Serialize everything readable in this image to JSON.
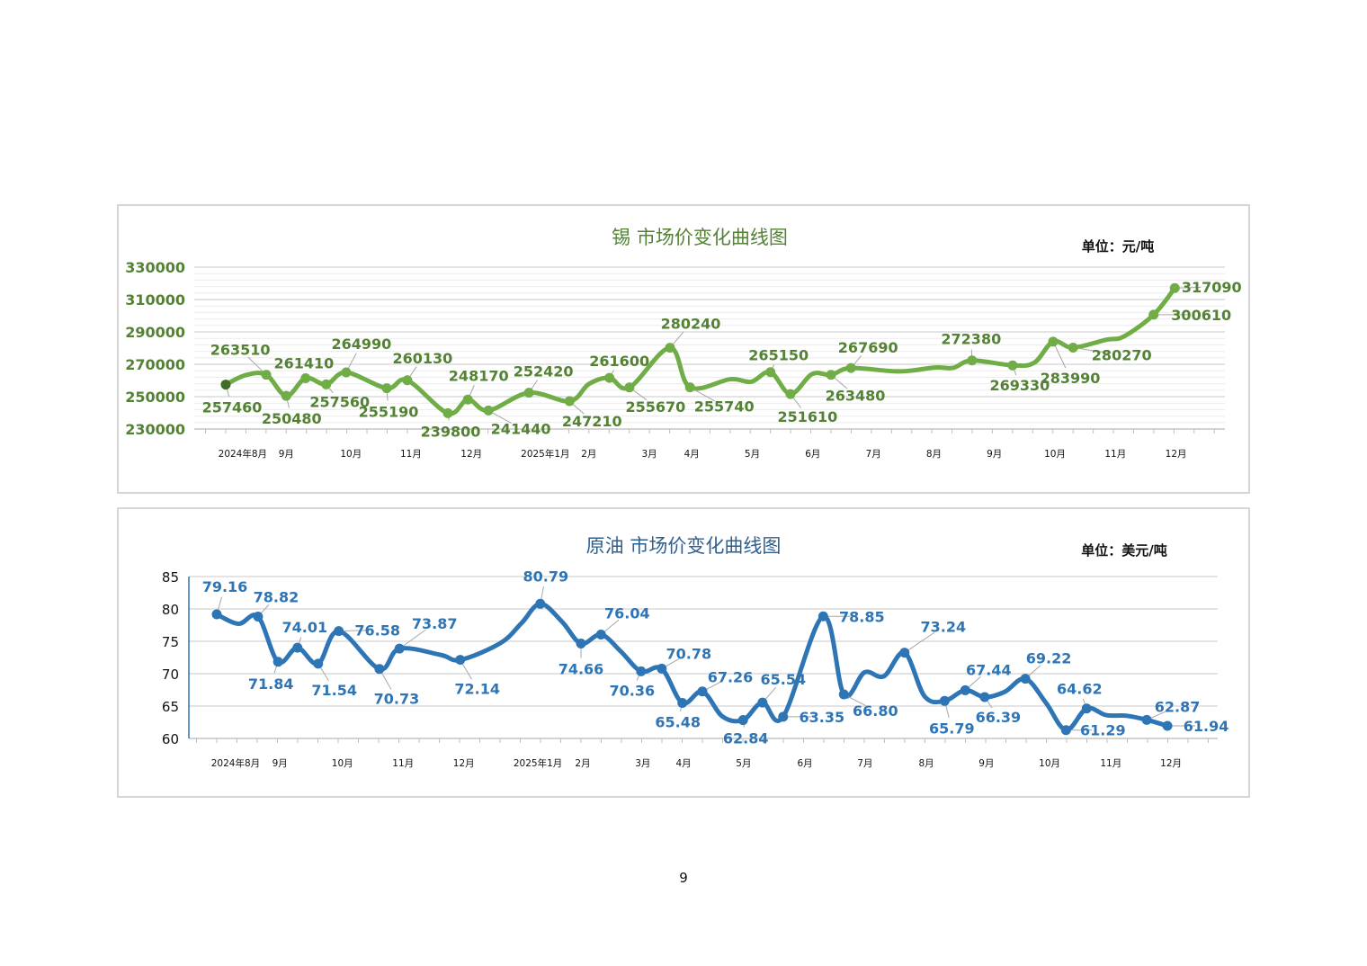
{
  "page_number": "9",
  "colors": {
    "tin_line": "#70ad47",
    "tin_text": "#548235",
    "tin_first_point": "#3f6f27",
    "oil_line": "#2e75b6",
    "oil_text": "#2e75b6"
  },
  "chart_data": [
    {
      "type": "line",
      "title": "锡  市场价变化曲线图",
      "unit": "单位：元/吨",
      "xlabel": "",
      "ylabel": "",
      "x_unit": "months since 2024年8月",
      "xlim": [
        -0.5,
        16.5
      ],
      "ylim": [
        230000,
        330000
      ],
      "yticks": [
        "330000",
        "310000",
        "290000",
        "270000",
        "250000",
        "230000"
      ],
      "ytick_values": [
        330000,
        310000,
        290000,
        270000,
        250000,
        230000
      ],
      "grid": true,
      "xticks": [
        {
          "x": 0.28,
          "label": "2024年8月"
        },
        {
          "x": 1.0,
          "label": "9月"
        },
        {
          "x": 2.07,
          "label": "10月"
        },
        {
          "x": 3.06,
          "label": "11月"
        },
        {
          "x": 4.06,
          "label": "12月"
        },
        {
          "x": 5.28,
          "label": "2025年1月"
        },
        {
          "x": 6.0,
          "label": "2月"
        },
        {
          "x": 7.0,
          "label": "3月"
        },
        {
          "x": 7.7,
          "label": "4月"
        },
        {
          "x": 8.7,
          "label": "5月"
        },
        {
          "x": 9.7,
          "label": "6月"
        },
        {
          "x": 10.7,
          "label": "7月"
        },
        {
          "x": 11.7,
          "label": "8月"
        },
        {
          "x": 12.7,
          "label": "9月"
        },
        {
          "x": 13.7,
          "label": "10月"
        },
        {
          "x": 14.7,
          "label": "11月"
        },
        {
          "x": 15.7,
          "label": "12月"
        }
      ],
      "series": [
        {
          "name": "锡",
          "points": [
            {
              "x": 0,
              "y": 257460,
              "label": "257460"
            },
            {
              "x": 0.33,
              "y": 263300,
              "label": null
            },
            {
              "x": 0.67,
              "y": 263510,
              "label": "263510"
            },
            {
              "x": 1.0,
              "y": 250480,
              "label": "250480"
            },
            {
              "x": 1.32,
              "y": 261410,
              "label": "261410"
            },
            {
              "x": 1.66,
              "y": 257560,
              "label": "257560"
            },
            {
              "x": 1.99,
              "y": 264990,
              "label": "264990"
            },
            {
              "x": 2.66,
              "y": 255190,
              "label": "255190"
            },
            {
              "x": 3.0,
              "y": 260130,
              "label": "260130"
            },
            {
              "x": 3.67,
              "y": 239800,
              "label": "239800"
            },
            {
              "x": 4.0,
              "y": 248170,
              "label": "248170"
            },
            {
              "x": 4.34,
              "y": 241440,
              "label": "241440"
            },
            {
              "x": 5.01,
              "y": 252420,
              "label": "252420"
            },
            {
              "x": 5.68,
              "y": 247210,
              "label": "247210"
            },
            {
              "x": 6.0,
              "y": 257800,
              "label": null
            },
            {
              "x": 6.34,
              "y": 261600,
              "label": "261600"
            },
            {
              "x": 6.67,
              "y": 255670,
              "label": "255670"
            },
            {
              "x": 7.34,
              "y": 280240,
              "label": "280240"
            },
            {
              "x": 7.67,
              "y": 255740,
              "label": "255740"
            },
            {
              "x": 8.34,
              "y": 260800,
              "label": null
            },
            {
              "x": 8.68,
              "y": 259200,
              "label": null
            },
            {
              "x": 9.0,
              "y": 265150,
              "label": "265150"
            },
            {
              "x": 9.33,
              "y": 251610,
              "label": "251610"
            },
            {
              "x": 9.69,
              "y": 264000,
              "label": null
            },
            {
              "x": 10.0,
              "y": 263480,
              "label": "263480"
            },
            {
              "x": 10.33,
              "y": 267690,
              "label": "267690"
            },
            {
              "x": 11.13,
              "y": 265600,
              "label": null
            },
            {
              "x": 11.72,
              "y": 268000,
              "label": null
            },
            {
              "x": 12.02,
              "y": 267800,
              "label": null
            },
            {
              "x": 12.33,
              "y": 272380,
              "label": "272380"
            },
            {
              "x": 13.0,
              "y": 269330,
              "label": "269330"
            },
            {
              "x": 13.36,
              "y": 271000,
              "label": null
            },
            {
              "x": 13.67,
              "y": 283990,
              "label": "283990"
            },
            {
              "x": 14.0,
              "y": 280270,
              "label": "280270"
            },
            {
              "x": 14.55,
              "y": 285200,
              "label": null
            },
            {
              "x": 14.84,
              "y": 287200,
              "label": null
            },
            {
              "x": 15.33,
              "y": 300610,
              "label": "300610"
            },
            {
              "x": 15.68,
              "y": 317090,
              "label": "317090"
            }
          ]
        }
      ]
    },
    {
      "type": "line",
      "title": "原油  市场价变化曲线图",
      "unit": "单位：美元/吨",
      "xlabel": "",
      "ylabel": "",
      "x_unit": "months since 2024年8月",
      "xlim": [
        -0.5,
        16.5
      ],
      "ylim": [
        60,
        85
      ],
      "yticks": [
        "85",
        "80",
        "75",
        "70",
        "65",
        "60"
      ],
      "ytick_values": [
        85,
        80,
        75,
        70,
        65,
        60
      ],
      "grid": true,
      "xticks": [
        {
          "x": 0.31,
          "label": "2024年8月"
        },
        {
          "x": 1.04,
          "label": "9月"
        },
        {
          "x": 2.07,
          "label": "10月"
        },
        {
          "x": 3.07,
          "label": "11月"
        },
        {
          "x": 4.07,
          "label": "12月"
        },
        {
          "x": 5.29,
          "label": "2025年1月"
        },
        {
          "x": 6.03,
          "label": "2月"
        },
        {
          "x": 7.02,
          "label": "3月"
        },
        {
          "x": 7.69,
          "label": "4月"
        },
        {
          "x": 8.68,
          "label": "5月"
        },
        {
          "x": 9.69,
          "label": "6月"
        },
        {
          "x": 10.68,
          "label": "7月"
        },
        {
          "x": 11.69,
          "label": "8月"
        },
        {
          "x": 12.68,
          "label": "9月"
        },
        {
          "x": 13.72,
          "label": "10月"
        },
        {
          "x": 14.73,
          "label": "11月"
        },
        {
          "x": 15.72,
          "label": "12月"
        }
      ],
      "series": [
        {
          "name": "原油",
          "points": [
            {
              "x": 0,
              "y": 79.16,
              "label": "79.16"
            },
            {
              "x": 0.36,
              "y": 77.7,
              "label": null
            },
            {
              "x": 0.68,
              "y": 78.82,
              "label": "78.82"
            },
            {
              "x": 1.01,
              "y": 71.84,
              "label": "71.84"
            },
            {
              "x": 1.33,
              "y": 74.01,
              "label": "74.01"
            },
            {
              "x": 1.67,
              "y": 71.54,
              "label": "71.54"
            },
            {
              "x": 2.01,
              "y": 76.58,
              "label": "76.58"
            },
            {
              "x": 2.68,
              "y": 70.73,
              "label": "70.73"
            },
            {
              "x": 3.01,
              "y": 73.87,
              "label": "73.87"
            },
            {
              "x": 3.69,
              "y": 72.9,
              "label": null
            },
            {
              "x": 4.01,
              "y": 72.14,
              "label": "72.14"
            },
            {
              "x": 4.67,
              "y": 74.7,
              "label": null
            },
            {
              "x": 5.02,
              "y": 77.8,
              "label": null
            },
            {
              "x": 5.33,
              "y": 80.79,
              "label": "80.79"
            },
            {
              "x": 5.69,
              "y": 78.0,
              "label": null
            },
            {
              "x": 6.0,
              "y": 74.66,
              "label": "74.66"
            },
            {
              "x": 6.33,
              "y": 76.04,
              "label": "76.04"
            },
            {
              "x": 6.65,
              "y": 73.5,
              "label": null
            },
            {
              "x": 6.99,
              "y": 70.36,
              "label": "70.36"
            },
            {
              "x": 7.33,
              "y": 70.78,
              "label": "70.78"
            },
            {
              "x": 7.67,
              "y": 65.48,
              "label": "65.48"
            },
            {
              "x": 8.0,
              "y": 67.26,
              "label": "67.26"
            },
            {
              "x": 8.33,
              "y": 63.4,
              "label": null
            },
            {
              "x": 8.67,
              "y": 62.84,
              "label": "62.84"
            },
            {
              "x": 8.99,
              "y": 65.54,
              "label": "65.54"
            },
            {
              "x": 9.33,
              "y": 63.35,
              "label": "63.35"
            },
            {
              "x": 9.99,
              "y": 78.85,
              "label": "78.85"
            },
            {
              "x": 10.33,
              "y": 66.8,
              "label": "66.80"
            },
            {
              "x": 10.67,
              "y": 70.2,
              "label": null
            },
            {
              "x": 10.99,
              "y": 69.6,
              "label": null
            },
            {
              "x": 11.33,
              "y": 73.24,
              "label": "73.24"
            },
            {
              "x": 11.66,
              "y": 66.5,
              "label": null
            },
            {
              "x": 11.99,
              "y": 65.79,
              "label": "65.79"
            },
            {
              "x": 12.33,
              "y": 67.44,
              "label": "67.44"
            },
            {
              "x": 12.65,
              "y": 66.39,
              "label": "66.39"
            },
            {
              "x": 12.98,
              "y": 67.2,
              "label": null
            },
            {
              "x": 13.32,
              "y": 69.22,
              "label": "69.22"
            },
            {
              "x": 13.66,
              "y": 65.5,
              "label": null
            },
            {
              "x": 13.99,
              "y": 61.29,
              "label": "61.29"
            },
            {
              "x": 14.33,
              "y": 64.62,
              "label": "64.62"
            },
            {
              "x": 14.65,
              "y": 63.6,
              "label": null
            },
            {
              "x": 14.99,
              "y": 63.5,
              "label": null
            },
            {
              "x": 15.32,
              "y": 62.87,
              "label": "62.87"
            },
            {
              "x": 15.66,
              "y": 61.94,
              "label": "61.94"
            }
          ]
        }
      ]
    }
  ]
}
